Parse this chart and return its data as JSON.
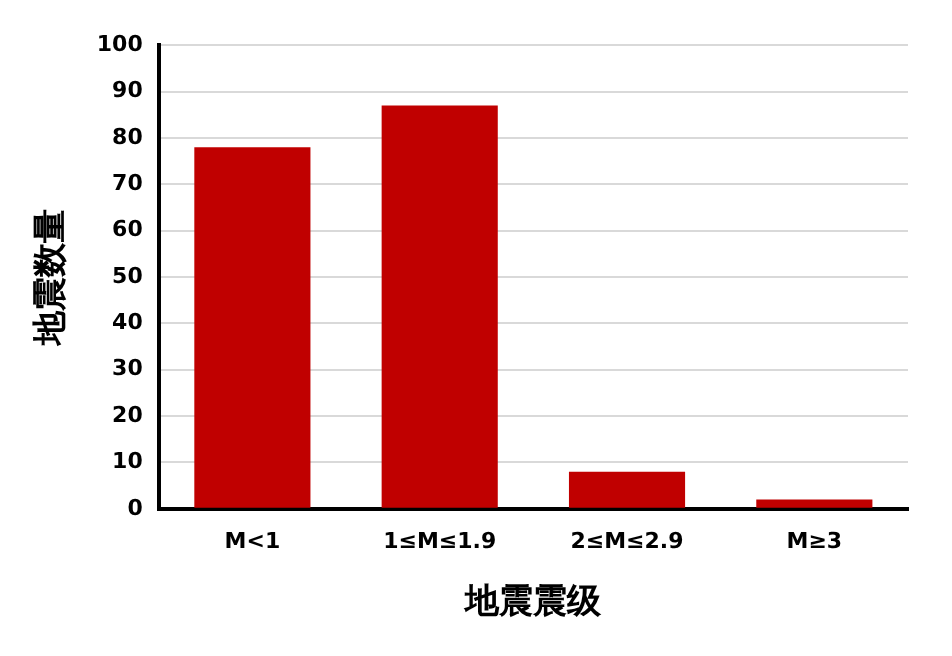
{
  "chart_data": {
    "type": "bar",
    "xlabel": "地震震级",
    "ylabel": "地震数量",
    "categories": [
      "M<1",
      "1≤M≤1.9",
      "2≤M≤2.9",
      "M≥3"
    ],
    "values": [
      78,
      87,
      8,
      2
    ],
    "color": "#c00000",
    "ylim": [
      0,
      100
    ],
    "yticks": [
      0,
      10,
      20,
      30,
      40,
      50,
      60,
      70,
      80,
      90,
      100
    ],
    "grid": "y"
  }
}
